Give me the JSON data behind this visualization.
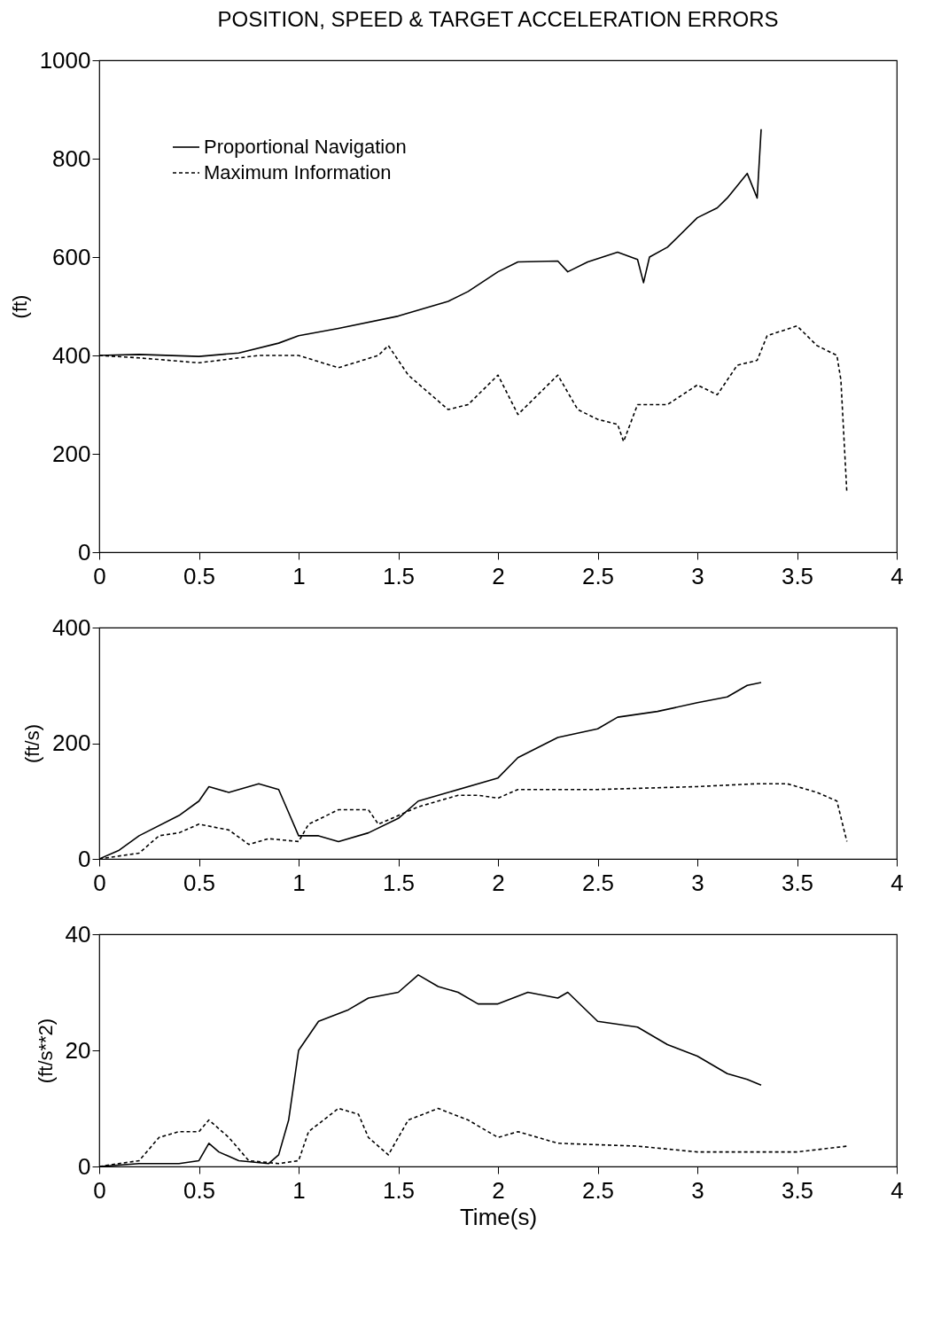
{
  "chart_data": [
    {
      "type": "line",
      "title": "POSITION, SPEED & TARGET ACCELERATION ERRORS",
      "ylabel": "(ft)",
      "xlim": [
        0,
        4
      ],
      "xticks": [
        0,
        0.5,
        1,
        1.5,
        2,
        2.5,
        3,
        3.5,
        4
      ],
      "ylim": [
        0,
        1000
      ],
      "yticks": [
        0,
        200,
        400,
        600,
        800,
        1000
      ],
      "grid": false,
      "legend": "top left",
      "series": [
        {
          "name": "Proportional Navigation",
          "color": "#000000",
          "line_style": "solid",
          "x": [
            0,
            0.2,
            0.5,
            0.7,
            0.9,
            1.0,
            1.2,
            1.5,
            1.75,
            1.85,
            2.0,
            2.1,
            2.3,
            2.35,
            2.45,
            2.6,
            2.7,
            2.73,
            2.76,
            2.85,
            3.0,
            3.1,
            3.15,
            3.25,
            3.3,
            3.32
          ],
          "values": [
            400,
            402,
            398,
            405,
            425,
            440,
            455,
            480,
            510,
            530,
            570,
            590,
            592,
            570,
            590,
            610,
            595,
            548,
            600,
            620,
            680,
            700,
            720,
            770,
            720,
            860
          ]
        },
        {
          "name": "Maximum Information",
          "color": "#000000",
          "line_style": "dashed",
          "x": [
            0,
            0.2,
            0.5,
            0.8,
            1.0,
            1.2,
            1.4,
            1.45,
            1.55,
            1.75,
            1.85,
            2.0,
            2.1,
            2.2,
            2.3,
            2.4,
            2.5,
            2.6,
            2.63,
            2.7,
            2.85,
            3.0,
            3.1,
            3.2,
            3.3,
            3.35,
            3.5,
            3.6,
            3.7,
            3.72,
            3.75
          ],
          "values": [
            400,
            395,
            385,
            400,
            400,
            375,
            400,
            420,
            360,
            290,
            300,
            360,
            280,
            320,
            360,
            290,
            270,
            260,
            225,
            300,
            300,
            340,
            320,
            380,
            390,
            440,
            460,
            420,
            400,
            350,
            120
          ]
        }
      ]
    },
    {
      "type": "line",
      "ylabel": "(ft/s)",
      "xlim": [
        0,
        4
      ],
      "xticks": [
        0,
        0.5,
        1,
        1.5,
        2,
        2.5,
        3,
        3.5,
        4
      ],
      "ylim": [
        0,
        400
      ],
      "yticks": [
        0,
        200,
        400
      ],
      "grid": false,
      "legend": "top left",
      "series": [
        {
          "name": "Proportional Navigation",
          "color": "#000000",
          "line_style": "solid",
          "x": [
            0,
            0.1,
            0.2,
            0.4,
            0.5,
            0.55,
            0.65,
            0.8,
            0.9,
            0.95,
            1.0,
            1.1,
            1.2,
            1.35,
            1.5,
            1.6,
            1.75,
            2.0,
            2.1,
            2.3,
            2.5,
            2.6,
            2.8,
            3.0,
            3.15,
            3.25,
            3.32
          ],
          "values": [
            0,
            15,
            40,
            75,
            100,
            125,
            115,
            130,
            120,
            80,
            40,
            40,
            30,
            45,
            70,
            100,
            115,
            140,
            175,
            210,
            225,
            245,
            255,
            270,
            280,
            300,
            305
          ]
        },
        {
          "name": "Maximum Information",
          "color": "#000000",
          "line_style": "dashed",
          "x": [
            0,
            0.2,
            0.3,
            0.4,
            0.5,
            0.65,
            0.75,
            0.85,
            1.0,
            1.05,
            1.2,
            1.35,
            1.4,
            1.6,
            1.8,
            1.9,
            2.0,
            2.1,
            2.5,
            3.0,
            3.3,
            3.45,
            3.6,
            3.7,
            3.75
          ],
          "values": [
            0,
            10,
            40,
            45,
            60,
            50,
            25,
            35,
            30,
            60,
            85,
            85,
            60,
            90,
            110,
            110,
            105,
            120,
            120,
            125,
            130,
            130,
            115,
            100,
            30
          ]
        }
      ]
    },
    {
      "type": "line",
      "ylabel": "(ft/s**2)",
      "xlabel": "Time(s)",
      "xlim": [
        0,
        4
      ],
      "xticks": [
        0,
        0.5,
        1,
        1.5,
        2,
        2.5,
        3,
        3.5,
        4
      ],
      "ylim": [
        0,
        40
      ],
      "yticks": [
        0,
        20,
        40
      ],
      "grid": false,
      "legend": "top left",
      "series": [
        {
          "name": "Proportional Navigation",
          "color": "#000000",
          "line_style": "solid",
          "x": [
            0,
            0.2,
            0.4,
            0.5,
            0.55,
            0.6,
            0.7,
            0.85,
            0.9,
            0.95,
            1.0,
            1.1,
            1.25,
            1.35,
            1.5,
            1.6,
            1.7,
            1.8,
            1.9,
            2.0,
            2.15,
            2.3,
            2.35,
            2.5,
            2.7,
            2.85,
            3.0,
            3.15,
            3.25,
            3.32
          ],
          "values": [
            0,
            0.5,
            0.5,
            1,
            4,
            2.5,
            1,
            0.5,
            2,
            8,
            20,
            25,
            27,
            29,
            30,
            33,
            31,
            30,
            28,
            28,
            30,
            29,
            30,
            25,
            24,
            21,
            19,
            16,
            15,
            14
          ]
        },
        {
          "name": "Maximum Information",
          "color": "#000000",
          "line_style": "dashed",
          "x": [
            0,
            0.2,
            0.3,
            0.4,
            0.5,
            0.55,
            0.65,
            0.75,
            0.9,
            1.0,
            1.05,
            1.2,
            1.3,
            1.35,
            1.45,
            1.55,
            1.7,
            1.85,
            2.0,
            2.1,
            2.3,
            2.7,
            3.0,
            3.3,
            3.5,
            3.75
          ],
          "values": [
            0,
            1,
            5,
            6,
            6,
            8,
            5,
            1,
            0.5,
            1,
            6,
            10,
            9,
            5,
            2,
            8,
            10,
            8,
            5,
            6,
            4,
            3.5,
            2.5,
            2.5,
            2.5,
            3.5
          ]
        }
      ]
    }
  ]
}
